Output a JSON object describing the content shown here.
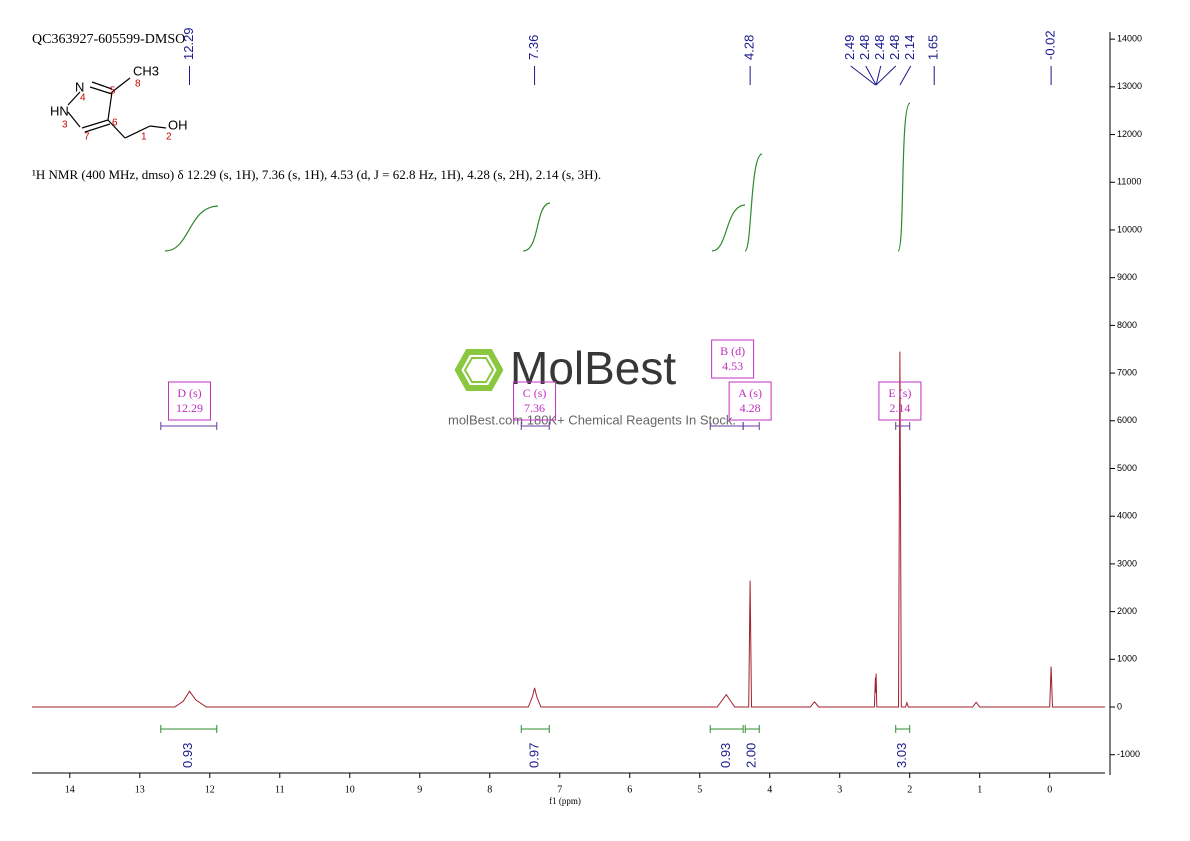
{
  "chart_data": {
    "type": "nmr",
    "title": "QC363927-605599-DMSO",
    "x_label": "f1 (ppm)",
    "description": "¹H NMR (400 MHz, dmso) δ 12.29 (s, 1H), 7.36 (s, 1H), 4.53 (d, J = 62.8 Hz, 1H), 4.28 (s, 2H), 2.14 (s, 3H).",
    "structure": {
      "atoms": [
        "N",
        "HN",
        "CH3",
        "OH"
      ],
      "numbers": [
        "4",
        "5",
        "8",
        "3",
        "7",
        "6",
        "1",
        "2"
      ]
    },
    "watermark": {
      "brand": "MolBest",
      "tagline": "molBest.com 180K+ Chemical Reagents In Stock."
    },
    "xlim": [
      14.54,
      -0.79
    ],
    "xticks": [
      14,
      13,
      12,
      11,
      10,
      9,
      8,
      7,
      6,
      5,
      4,
      3,
      2,
      1,
      0
    ],
    "ylim": [
      -1425,
      14150
    ],
    "yticks": [
      -1000,
      0,
      1000,
      2000,
      3000,
      4000,
      5000,
      6000,
      7000,
      8000,
      9000,
      10000,
      11000,
      12000,
      13000,
      14000
    ],
    "peak_labels": [
      12.29,
      7.36,
      4.28,
      2.49,
      2.48,
      2.48,
      2.48,
      2.14,
      1.65,
      -0.02
    ],
    "multiplets": [
      {
        "name": "D (s)",
        "shift": 12.29,
        "range": [
          12.7,
          11.9
        ]
      },
      {
        "name": "C (s)",
        "shift": 7.36,
        "range": [
          7.55,
          7.15
        ]
      },
      {
        "name": "B (d)",
        "shift": 4.53,
        "range": [
          4.85,
          4.38
        ]
      },
      {
        "name": "A (s)",
        "shift": 4.28,
        "range": [
          4.38,
          4.15
        ]
      },
      {
        "name": "E (s)",
        "shift": 2.14,
        "range": [
          2.2,
          2.0
        ]
      }
    ],
    "integrals": [
      {
        "value": 0.93,
        "range": [
          12.7,
          11.9
        ]
      },
      {
        "value": 0.97,
        "range": [
          7.55,
          7.15
        ]
      },
      {
        "value": 0.93,
        "range": [
          4.85,
          4.38
        ]
      },
      {
        "value": 2,
        "label": "2.00",
        "range": [
          4.35,
          4.15
        ]
      },
      {
        "value": 3.03,
        "range": [
          2.2,
          2.0
        ]
      }
    ],
    "series": [
      {
        "name": "spectrum",
        "color": "#a3202c",
        "x": [
          14.54,
          12.5,
          12.38,
          12.29,
          12.2,
          12.05,
          7.45,
          7.39,
          7.36,
          7.33,
          7.27,
          4.75,
          4.62,
          4.5,
          4.3,
          4.28,
          4.26,
          3.42,
          3.36,
          3.3,
          2.505,
          2.49,
          2.485,
          2.48,
          2.47,
          2.16,
          2.14,
          2.12,
          2.06,
          2.04,
          2.02,
          1.1,
          1.05,
          1.0,
          0.0,
          -0.02,
          -0.04,
          -0.79
        ],
        "values": [
          0,
          0,
          120,
          330,
          150,
          0,
          0,
          220,
          400,
          220,
          0,
          0,
          260,
          0,
          0,
          2650,
          0,
          0,
          110,
          0,
          0,
          620,
          300,
          700,
          0,
          0,
          7450,
          0,
          0,
          90,
          0,
          0,
          100,
          0,
          0,
          850,
          0,
          0
        ]
      }
    ]
  }
}
